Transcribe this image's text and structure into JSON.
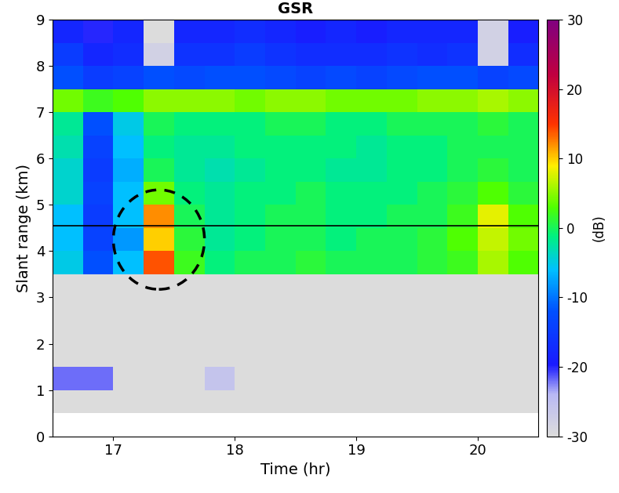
{
  "chart_data": {
    "type": "heatmap",
    "title": "GSR",
    "x_label": "Time (hr)",
    "y_label": "Slant range (km)",
    "xlim": [
      16.5,
      20.5
    ],
    "xticks": [
      17,
      18,
      19,
      20
    ],
    "ylim": [
      0,
      9
    ],
    "yticks": [
      0,
      1,
      2,
      3,
      4,
      5,
      6,
      7,
      8,
      9
    ],
    "x_edges": [
      16.5,
      16.75,
      17.0,
      17.25,
      17.5,
      17.75,
      18.0,
      18.25,
      18.5,
      18.75,
      19.0,
      19.25,
      19.5,
      19.75,
      20.0,
      20.25,
      20.5
    ],
    "y_edges": [
      0.5,
      1.0,
      1.5,
      2.0,
      2.5,
      3.0,
      3.5,
      4.0,
      4.5,
      5.0,
      5.5,
      6.0,
      6.5,
      7.0,
      7.5,
      8.0,
      8.5,
      9.0
    ],
    "cells": [
      [
        -30,
        -30,
        -30,
        -30,
        -30,
        -30,
        -30,
        -30,
        -30,
        -30,
        -30,
        -30,
        -30,
        -30,
        -30,
        -30
      ],
      [
        -22,
        -22,
        -30,
        -30,
        -30,
        -26,
        -30,
        -30,
        -30,
        -30,
        -30,
        -30,
        -30,
        -30,
        -30,
        -30
      ],
      [
        -30,
        -30,
        -30,
        -30,
        -30,
        -30,
        -30,
        -30,
        -30,
        -30,
        -30,
        -30,
        -30,
        -30,
        -30,
        -30
      ],
      [
        -30,
        -30,
        -30,
        -30,
        -30,
        -30,
        -30,
        -30,
        -30,
        -30,
        -30,
        -30,
        -30,
        -30,
        -30,
        -30
      ],
      [
        -30,
        -30,
        -30,
        -30,
        -30,
        -30,
        -30,
        -30,
        -30,
        -30,
        -30,
        -30,
        -30,
        -30,
        -30,
        -30
      ],
      [
        -30,
        -30,
        -30,
        -30,
        -30,
        -30,
        -30,
        -30,
        -30,
        -30,
        -30,
        -30,
        -30,
        -30,
        -30,
        -30
      ],
      [
        -5,
        -12,
        -6,
        14,
        2,
        -1,
        0,
        0,
        1,
        0,
        0,
        0,
        1,
        2,
        6,
        3
      ],
      [
        -6,
        -14,
        -8,
        10,
        1,
        -2,
        -1,
        0,
        0,
        -1,
        0,
        0,
        1,
        3,
        7,
        4
      ],
      [
        -6,
        -15,
        -6,
        12,
        0,
        -2,
        -1,
        0,
        0,
        -1,
        -1,
        0,
        0,
        2,
        8,
        3
      ],
      [
        -4,
        -14,
        -6,
        4,
        -1,
        -2,
        -1,
        -1,
        0,
        -1,
        -1,
        -1,
        0,
        1,
        3,
        1
      ],
      [
        -4,
        -15,
        -7,
        0,
        -2,
        -3,
        -2,
        -1,
        -1,
        -2,
        -2,
        -1,
        -1,
        0,
        1,
        0
      ],
      [
        -3,
        -14,
        -6,
        -1,
        -2,
        -2,
        -1,
        -1,
        -1,
        -1,
        -2,
        -1,
        -1,
        0,
        0,
        0
      ],
      [
        -2,
        -12,
        -5,
        0,
        -1,
        -1,
        -1,
        0,
        0,
        -1,
        -1,
        0,
        0,
        0,
        1,
        0
      ],
      [
        4,
        2,
        3,
        5,
        5,
        5,
        4,
        5,
        5,
        4,
        4,
        4,
        5,
        5,
        6,
        5
      ],
      [
        -12,
        -15,
        -14,
        -12,
        -13,
        -12,
        -12,
        -13,
        -14,
        -13,
        -14,
        -13,
        -12,
        -12,
        -14,
        -13
      ],
      [
        -15,
        -18,
        -17,
        -28,
        -16,
        -16,
        -15,
        -16,
        -17,
        -17,
        -17,
        -16,
        -17,
        -16,
        -28,
        -17
      ],
      [
        -18,
        -20,
        -18,
        -30,
        -18,
        -18,
        -17,
        -18,
        -19,
        -18,
        -19,
        -18,
        -18,
        -18,
        -28,
        -19
      ]
    ],
    "hline": 4.55,
    "colorbar_label": "(dB)",
    "colorbar_range": [
      -30,
      30
    ],
    "colorbar_ticks": [
      -30,
      -20,
      -10,
      0,
      10,
      20,
      30
    ]
  }
}
